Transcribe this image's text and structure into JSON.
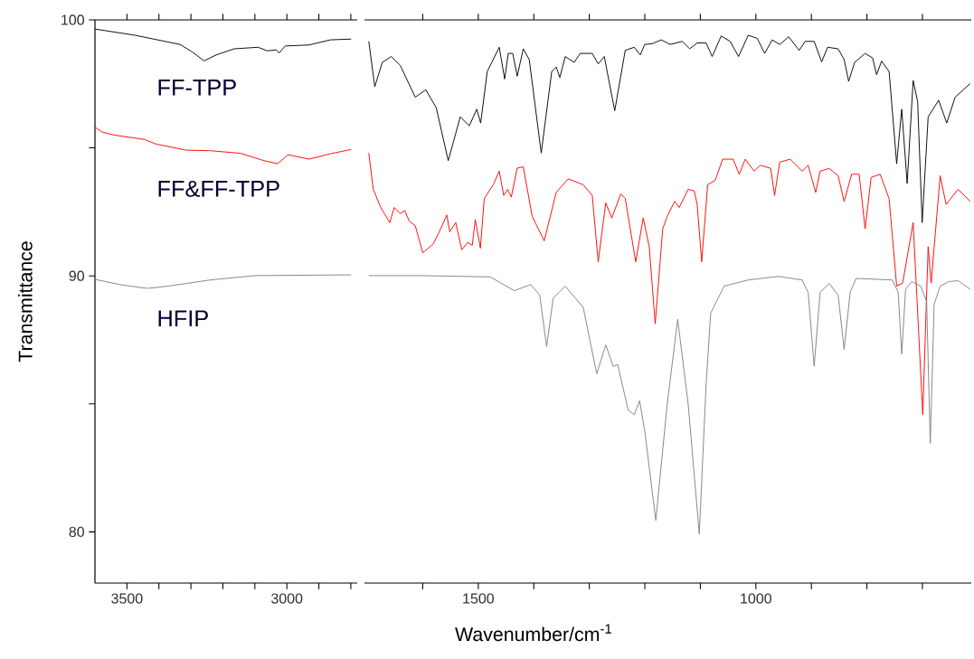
{
  "chart_data": [
    {
      "type": "line",
      "ylabel": "Transmittance",
      "xlim": [
        3600,
        2780
      ],
      "ylim": [
        78,
        100
      ],
      "xticks": [
        3500,
        {
          "value": 3400,
          "label": null
        },
        {
          "value": 3300,
          "label": null
        },
        {
          "value": 3200,
          "label": null
        },
        {
          "value": 3100,
          "label": null
        },
        3000,
        {
          "value": 2900,
          "label": null
        },
        {
          "value": 2800,
          "label": null
        }
      ],
      "yticks": [
        80,
        {
          "value": 85,
          "label": null
        },
        90,
        {
          "value": 95,
          "label": null
        },
        100
      ],
      "series": [
        {
          "name": "FF-TPP",
          "color": "#000000",
          "x": [
            3599,
            3475,
            3334,
            3296,
            3259,
            3221,
            3165,
            3090,
            3061,
            3033,
            3024,
            3005,
            2930,
            2864,
            2799
          ],
          "values": [
            99.64,
            99.4,
            99.04,
            98.75,
            98.4,
            98.63,
            98.87,
            98.93,
            98.79,
            98.83,
            98.71,
            98.98,
            99.02,
            99.22,
            99.25
          ]
        },
        {
          "name": "FF&FF-TPP",
          "color": "#ff0000",
          "x": [
            3599,
            3578,
            3540,
            3446,
            3409,
            3315,
            3240,
            3146,
            3071,
            3029,
            2996,
            2930,
            2864,
            2799
          ],
          "values": [
            95.8,
            95.62,
            95.5,
            95.33,
            95.15,
            94.91,
            94.89,
            94.79,
            94.5,
            94.38,
            94.73,
            94.56,
            94.77,
            94.94
          ]
        },
        {
          "name": "HFIP",
          "color": "#808080",
          "x": [
            3599,
            3522,
            3437,
            3371,
            3240,
            3099,
            2799
          ],
          "values": [
            89.86,
            89.66,
            89.51,
            89.6,
            89.84,
            90.01,
            90.04
          ]
        }
      ]
    },
    {
      "type": "line",
      "xlabel": "Wavenumber/cm$^{-1}$",
      "xlim": [
        1705,
        612
      ],
      "ylim": [
        78,
        100
      ],
      "tick_labels": "x",
      "xticks": [
        {
          "value": 1600,
          "label": null
        },
        1500,
        {
          "value": 1400,
          "label": null
        },
        {
          "value": 1300,
          "label": null
        },
        {
          "value": 1200,
          "label": null
        },
        {
          "value": 1100,
          "label": null
        },
        1000,
        {
          "value": 900,
          "label": null
        },
        {
          "value": 800,
          "label": null
        },
        {
          "value": 700,
          "label": null
        }
      ],
      "series": [
        {
          "color": "#000000",
          "x": [
            1697.2,
            1686.4,
            1672.9,
            1656.7,
            1640.5,
            1613.5,
            1594.6,
            1575.7,
            1554.1,
            1532.4,
            1516.2,
            1502.7,
            1495.7,
            1483.8,
            1462.2,
            1452.5,
            1446.0,
            1437.9,
            1429.8,
            1419.0,
            1408.2,
            1386.6,
            1367.7,
            1359.6,
            1353.1,
            1343.4,
            1327.2,
            1316.4,
            1294.7,
            1284.0,
            1273.1,
            1254.2,
            1235.3,
            1219.1,
            1208.3,
            1200.2,
            1186.7,
            1170.5,
            1154.3,
            1132.7,
            1119.2,
            1105.7,
            1089.5,
            1078.7,
            1062.5,
            1046.3,
            1031.1,
            1013.8,
            997.6,
            984.1,
            970.6,
            957.1,
            940.9,
            922.0,
            911.2,
            895.0,
            881.5,
            870.7,
            851.8,
            841.0,
            832.9,
            822.1,
            803.2,
            789.7,
            782.6,
            773.5,
            760.0,
            746.4,
            737.3,
            727.5,
            716.7,
            708.6,
            700.5,
            689.7,
            670.8,
            656.2,
            641.1,
            614.1
          ],
          "values": [
            99.16,
            97.39,
            98.34,
            98.57,
            98.22,
            96.98,
            97.27,
            96.57,
            94.5,
            96.21,
            95.86,
            96.51,
            95.97,
            97.98,
            98.93,
            97.69,
            98.69,
            98.69,
            97.8,
            98.87,
            98.45,
            94.8,
            97.98,
            98.16,
            97.75,
            98.57,
            98.34,
            98.69,
            98.69,
            98.28,
            98.57,
            96.45,
            98.81,
            98.93,
            98.63,
            99.04,
            99.07,
            99.22,
            99.04,
            99.16,
            98.87,
            99.1,
            99.1,
            98.57,
            99.37,
            99.16,
            98.57,
            99.4,
            99.28,
            98.69,
            99.22,
            99.04,
            99.34,
            98.81,
            99.16,
            99.16,
            98.36,
            98.93,
            98.87,
            98.45,
            97.6,
            98.34,
            98.69,
            98.51,
            97.86,
            98.39,
            97.98,
            94.38,
            96.51,
            93.61,
            97.63,
            96.8,
            92.08,
            96.21,
            96.86,
            95.97,
            96.98,
            97.51
          ]
        },
        {
          "color": "#ff0000",
          "x": [
            1697.2,
            1689.1,
            1675.6,
            1659.4,
            1651.3,
            1640.5,
            1632.4,
            1624.3,
            1613.5,
            1600.0,
            1581.1,
            1570.3,
            1556.7,
            1551.3,
            1540.5,
            1529.7,
            1518.9,
            1510.8,
            1505.4,
            1496.2,
            1489.2,
            1473.0,
            1462.2,
            1454.1,
            1447.1,
            1440.6,
            1429.8,
            1419.0,
            1402.8,
            1381.2,
            1359.6,
            1338.0,
            1311.0,
            1294.7,
            1284.0,
            1270.4,
            1259.6,
            1243.4,
            1235.3,
            1216.4,
            1202.9,
            1192.1,
            1181.3,
            1167.8,
            1159.7,
            1146.2,
            1138.1,
            1121.9,
            1111.1,
            1105.7,
            1097.6,
            1086.8,
            1073.3,
            1059.8,
            1040.9,
            1030.0,
            1019.2,
            1003.1,
            992.2,
            973.3,
            966.3,
            957.1,
            938.2,
            916.6,
            905.8,
            892.3,
            884.2,
            868.0,
            851.8,
            841.0,
            827.5,
            814.0,
            803.2,
            792.4,
            776.2,
            760.0,
            746.4,
            735.6,
            716.7,
            699.4,
            689.7,
            684.3,
            668.1,
            657.3,
            635.7,
            614.1
          ],
          "values": [
            94.8,
            93.38,
            92.67,
            92.08,
            92.67,
            92.43,
            92.55,
            92.14,
            91.96,
            90.9,
            91.25,
            91.72,
            92.38,
            91.72,
            92.08,
            91.02,
            91.31,
            91.19,
            92.2,
            91.08,
            93.02,
            93.56,
            94.09,
            93.14,
            93.38,
            93.08,
            94.21,
            94.26,
            92.32,
            91.37,
            93.26,
            93.79,
            93.56,
            93.14,
            90.55,
            92.85,
            92.26,
            93.2,
            93.02,
            90.55,
            92.26,
            91.14,
            88.13,
            91.84,
            92.32,
            92.91,
            92.67,
            93.38,
            93.32,
            92.79,
            90.55,
            93.56,
            93.73,
            94.56,
            94.56,
            93.97,
            94.56,
            94.09,
            94.32,
            94.2,
            93.14,
            94.44,
            94.56,
            94.09,
            94.32,
            93.26,
            94.09,
            94.2,
            93.91,
            92.91,
            93.97,
            93.97,
            91.84,
            93.85,
            93.97,
            93.02,
            89.6,
            89.72,
            92.08,
            84.58,
            91.14,
            89.72,
            93.91,
            92.79,
            93.38,
            92.91
          ]
        },
        {
          "color": "#808080",
          "x": [
            1697.2,
            1602.7,
            1478.4,
            1435.2,
            1405.5,
            1389.3,
            1376.9,
            1365.0,
            1343.4,
            1311.0,
            1286.7,
            1270.4,
            1257.0,
            1248.8,
            1230.0,
            1219.1,
            1209.4,
            1200.2,
            1180.2,
            1159.7,
            1140.8,
            1121.9,
            1101.9,
            1089.5,
            1081.4,
            1057.1,
            1013.8,
            959.8,
            916.6,
            905.8,
            895.0,
            884.2,
            868.0,
            851.8,
            841.0,
            830.2,
            819.4,
            754.5,
            743.7,
            737.3,
            730.3,
            719.4,
            703.2,
            692.4,
            685.9,
            678.9,
            668.1,
            651.9,
            635.7,
            614.1
          ],
          "values": [
            90.01,
            90.01,
            89.96,
            89.42,
            89.66,
            89.25,
            87.24,
            89.13,
            89.6,
            88.77,
            86.18,
            87.3,
            86.47,
            86.53,
            84.76,
            84.58,
            85.12,
            83.94,
            80.45,
            84.99,
            88.3,
            84.99,
            79.92,
            85.82,
            88.54,
            89.6,
            89.84,
            89.98,
            89.84,
            89.36,
            86.47,
            89.36,
            89.7,
            89.25,
            87.12,
            89.36,
            89.9,
            89.84,
            89.36,
            86.95,
            89.48,
            89.78,
            89.6,
            89.01,
            83.46,
            88.89,
            89.6,
            89.78,
            89.81,
            89.48
          ]
        }
      ]
    }
  ]
}
